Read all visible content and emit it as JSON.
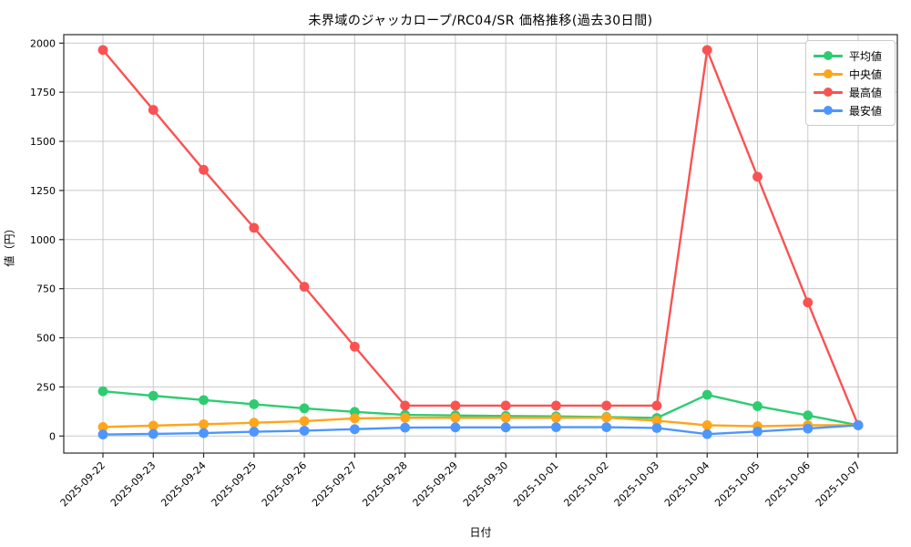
{
  "chart_data": {
    "type": "line",
    "title": "未界域のジャッカロープ/RC04/SR 価格推移(過去30日間)",
    "xlabel": "日付",
    "ylabel": "値（円）",
    "x": [
      "2025-09-22",
      "2025-09-23",
      "2025-09-24",
      "2025-09-25",
      "2025-09-26",
      "2025-09-27",
      "2025-09-28",
      "2025-09-29",
      "2025-09-30",
      "2025-10-01",
      "2025-10-02",
      "2025-10-03",
      "2025-10-04",
      "2025-10-05",
      "2025-10-06",
      "2025-10-07"
    ],
    "series": [
      {
        "name": "平均値",
        "color": "#2ecc71",
        "values": [
          228,
          205,
          183,
          162,
          141,
          123,
          108,
          105,
          102,
          100,
          97,
          92,
          210,
          152,
          105,
          55
        ]
      },
      {
        "name": "中央値",
        "color": "#ffa51b",
        "values": [
          46,
          53,
          60,
          68,
          76,
          90,
          93,
          93,
          93,
          93,
          94,
          78,
          55,
          50,
          55,
          55
        ]
      },
      {
        "name": "最高値",
        "color": "#fa5252",
        "values": [
          1965,
          1660,
          1355,
          1060,
          760,
          455,
          155,
          155,
          155,
          155,
          155,
          155,
          1965,
          1320,
          680,
          55
        ]
      },
      {
        "name": "最安値",
        "color": "#4d96ff",
        "values": [
          8,
          11,
          15,
          22,
          27,
          35,
          43,
          44,
          44,
          45,
          45,
          41,
          10,
          23,
          38,
          55
        ]
      }
    ],
    "yticks": [
      0,
      250,
      500,
      750,
      1000,
      1250,
      1500,
      1750,
      2000
    ],
    "ylim": [
      0,
      2000
    ],
    "grid": true,
    "legend_position": "upper right",
    "marker": "o",
    "grid_color": "#c8c8c8",
    "spine_color": "#2b2b2b"
  }
}
